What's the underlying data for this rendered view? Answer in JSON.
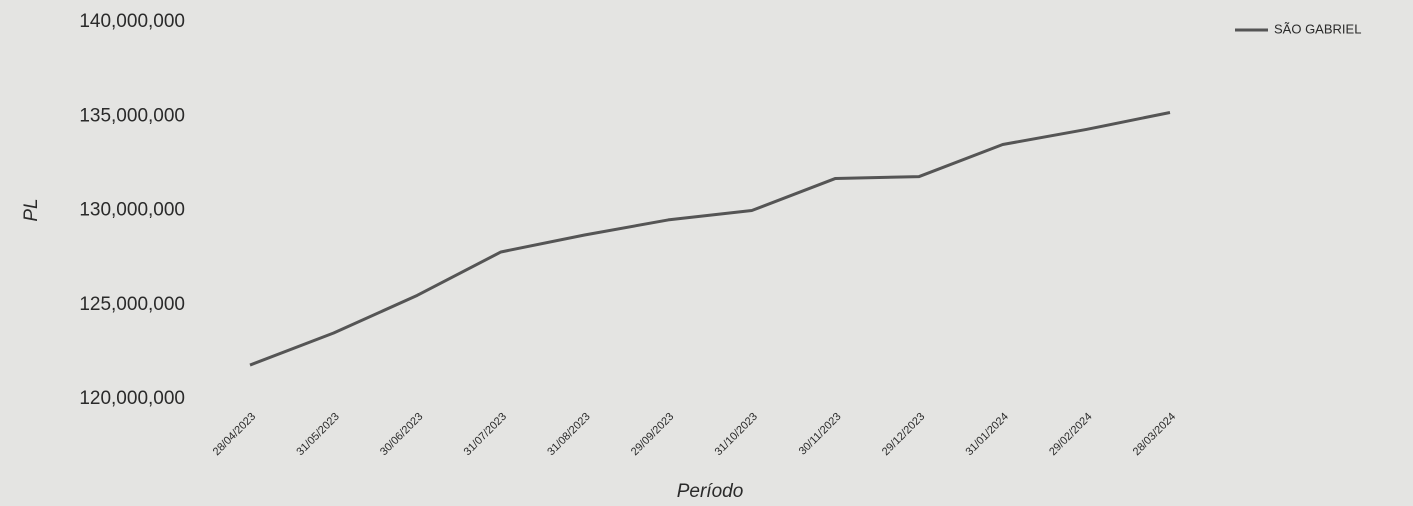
{
  "chart_data": {
    "type": "line",
    "x_label": "Período",
    "y_label": "PL",
    "categories": [
      "28/04/2023",
      "31/05/2023",
      "30/06/2023",
      "31/07/2023",
      "31/08/2023",
      "29/09/2023",
      "31/10/2023",
      "30/11/2023",
      "29/12/2023",
      "31/01/2024",
      "29/02/2024",
      "28/03/2024"
    ],
    "series": [
      {
        "name": "SÃO GABRIEL",
        "color": "#555555",
        "values": [
          121800000,
          123500000,
          125500000,
          127800000,
          128700000,
          129500000,
          130000000,
          131700000,
          131800000,
          133500000,
          134300000,
          135200000
        ]
      }
    ],
    "ylim": [
      120000000,
      140000000
    ],
    "yticks": [
      {
        "value": 120000000,
        "label": "120,000,000"
      },
      {
        "value": 125000000,
        "label": "125,000,000"
      },
      {
        "value": 130000000,
        "label": "130,000,000"
      },
      {
        "value": 135000000,
        "label": "135,000,000"
      },
      {
        "value": 140000000,
        "label": "140,000,000"
      }
    ],
    "grid": false,
    "legend": "top-right"
  }
}
